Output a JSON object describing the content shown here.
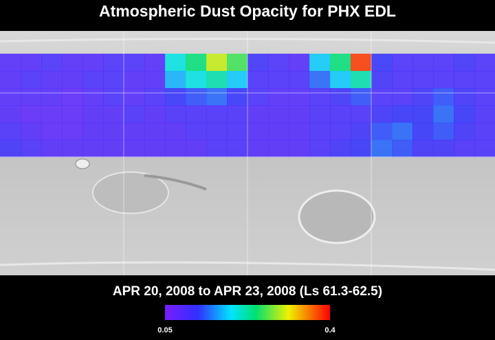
{
  "title": "Atmospheric Dust Opacity for PHX EDL",
  "date_range": "APR 20, 2008 to APR 23, 2008 (Ls 61.3-62.5)",
  "colorbar": {
    "ticks": [
      0.05,
      0.4
    ]
  },
  "grid": {
    "values": [
      [
        0.09,
        0.09,
        0.1,
        0.09,
        0.09,
        0.1,
        0.1,
        0.09,
        0.2,
        0.24,
        0.3,
        0.26,
        0.11,
        0.1,
        0.09,
        0.18,
        0.24,
        0.38,
        0.12,
        0.1,
        0.1,
        0.1,
        0.11,
        0.1
      ],
      [
        0.09,
        0.1,
        0.09,
        0.09,
        0.1,
        0.1,
        0.09,
        0.09,
        0.17,
        0.2,
        0.22,
        0.18,
        0.1,
        0.1,
        0.1,
        0.14,
        0.18,
        0.22,
        0.11,
        0.1,
        0.1,
        0.1,
        0.1,
        0.1
      ],
      [
        0.09,
        0.09,
        0.09,
        0.08,
        0.09,
        0.1,
        0.09,
        0.1,
        0.12,
        0.13,
        0.14,
        0.12,
        0.1,
        0.09,
        0.09,
        0.1,
        0.11,
        0.13,
        0.1,
        0.1,
        0.11,
        0.13,
        0.11,
        0.1
      ],
      [
        0.09,
        0.08,
        0.08,
        0.08,
        0.09,
        0.09,
        0.1,
        0.09,
        0.1,
        0.1,
        0.1,
        0.1,
        0.09,
        0.09,
        0.09,
        0.1,
        0.1,
        0.1,
        0.11,
        0.12,
        0.12,
        0.14,
        0.12,
        0.1
      ],
      [
        0.1,
        0.09,
        0.08,
        0.08,
        0.09,
        0.09,
        0.09,
        0.09,
        0.09,
        0.1,
        0.1,
        0.1,
        0.09,
        0.09,
        0.09,
        0.1,
        0.1,
        0.11,
        0.13,
        0.14,
        0.12,
        0.13,
        0.11,
        0.1
      ],
      [
        0.11,
        0.1,
        0.09,
        0.09,
        0.09,
        0.09,
        0.09,
        0.09,
        0.09,
        0.09,
        0.1,
        0.1,
        0.09,
        0.09,
        0.09,
        0.1,
        0.11,
        0.12,
        0.14,
        0.13,
        0.11,
        0.11,
        0.1,
        0.1
      ]
    ]
  }
}
